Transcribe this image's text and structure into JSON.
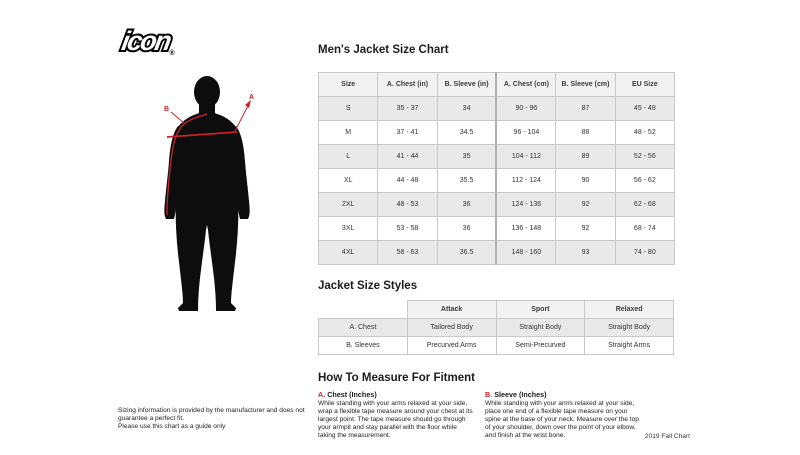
{
  "logo": {
    "text": "icon",
    "registered": "®"
  },
  "figure": {
    "label_a": "A",
    "label_b": "B",
    "accent_color": "#c8232c",
    "silhouette_color": "#0d0d0d"
  },
  "disclaimer": {
    "line1": "Sizing information is provided by the manufacturer and does not guarantee a perfect fit.",
    "line2": "Please use this chart as a guide only"
  },
  "size_chart": {
    "title": "Men's Jacket Size Chart",
    "columns": [
      "Size",
      "A. Chest (in)",
      "B. Sleeve (in)",
      "A. Chest (cm)",
      "B. Sleeve (cm)",
      "EU Size"
    ],
    "rows": [
      [
        "S",
        "35 - 37",
        "34",
        "90 - 96",
        "87",
        "45 - 48"
      ],
      [
        "M",
        "37 - 41",
        "34.5",
        "96 - 104",
        "88",
        "48 - 52"
      ],
      [
        "L",
        "41 - 44",
        "35",
        "104 - 112",
        "89",
        "52 - 56"
      ],
      [
        "XL",
        "44 - 48",
        "35.5",
        "112 - 124",
        "90",
        "56 - 62"
      ],
      [
        "2XL",
        "48 - 53",
        "36",
        "124 - 136",
        "92",
        "62 - 68"
      ],
      [
        "3XL",
        "53 - 58",
        "36",
        "136 - 148",
        "92",
        "68 - 74"
      ],
      [
        "4XL",
        "58 - 63",
        "36.5",
        "148 - 160",
        "93",
        "74 - 80"
      ]
    ]
  },
  "style_chart": {
    "title": "Jacket Size Styles",
    "columns": [
      "",
      "Attack",
      "Sport",
      "Relaxed"
    ],
    "rows": [
      [
        "A. Chest",
        "Tailored Body",
        "Straight Body",
        "Straight Body"
      ],
      [
        "B. Sleeves",
        "Precurved Arms",
        "Semi-Precurved",
        "Straight Arms"
      ]
    ]
  },
  "how_to_measure": {
    "title": "How To Measure For Fitment",
    "sections": [
      {
        "prefix": "A.",
        "heading": "Chest (Inches)",
        "body": "While standing with your arms relaxed at your side, wrap a flexible tape measure around your chest at its largest point. The tape measure should go through your armpit and stay parallel with the floor while taking the measurement."
      },
      {
        "prefix": "B.",
        "heading": "Sleeve (Inches)",
        "body": "While standing with your arms relaxed at your side, place one end of a flexible tape measure on your spine at the base of your neck. Measure over the top of your shoulder, down over the point of your elbow, and finish at the wrist bone."
      }
    ]
  },
  "footer": {
    "note": "2019 Fall Chart"
  }
}
